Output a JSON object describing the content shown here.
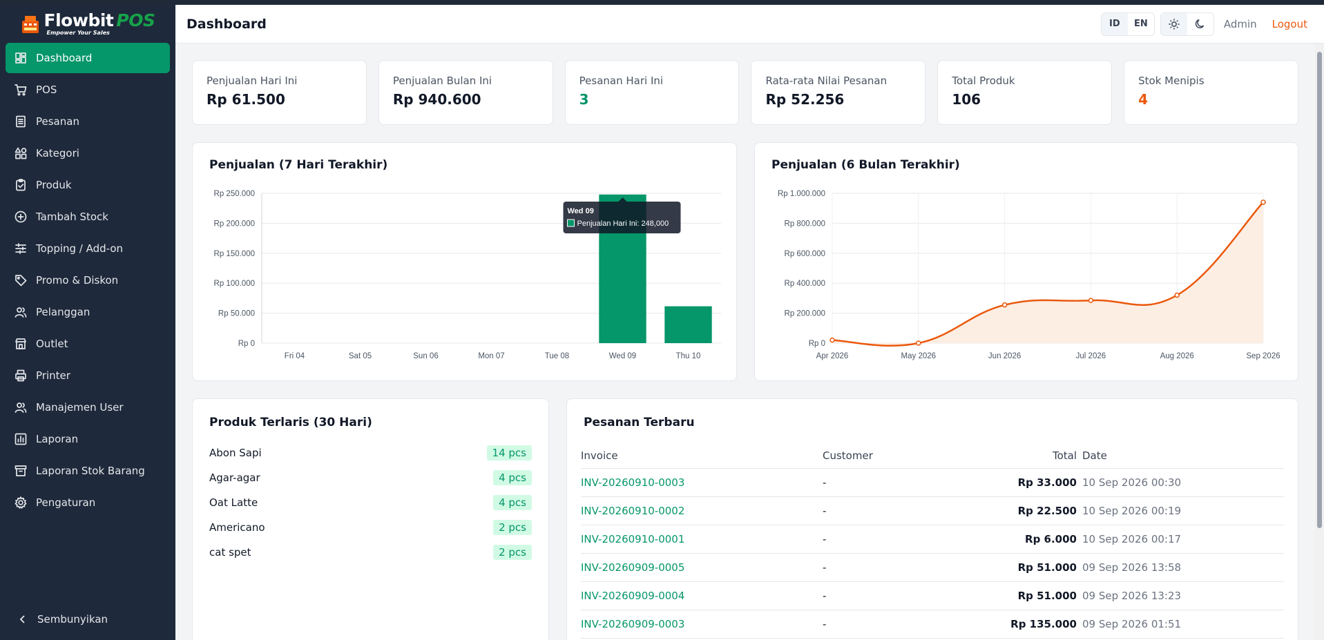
{
  "app": {
    "logo_title": "Flowbit",
    "logo_accent": "POS",
    "logo_tagline": "Empower Your Sales"
  },
  "sidebar": {
    "items": [
      {
        "label": "Dashboard",
        "icon": "dashboard-icon",
        "active": true
      },
      {
        "label": "POS",
        "icon": "cart-icon"
      },
      {
        "label": "Pesanan",
        "icon": "receipt-icon"
      },
      {
        "label": "Kategori",
        "icon": "shapes-icon"
      },
      {
        "label": "Produk",
        "icon": "clipboard-check-icon"
      },
      {
        "label": "Tambah Stock",
        "icon": "plus-circle-icon"
      },
      {
        "label": "Topping / Add-on",
        "icon": "sliders-icon"
      },
      {
        "label": "Promo & Diskon",
        "icon": "tag-icon"
      },
      {
        "label": "Pelanggan",
        "icon": "users-icon"
      },
      {
        "label": "Outlet",
        "icon": "store-icon"
      },
      {
        "label": "Printer",
        "icon": "printer-icon"
      },
      {
        "label": "Manajemen User",
        "icon": "users-icon"
      },
      {
        "label": "Laporan",
        "icon": "bar-chart-icon"
      },
      {
        "label": "Laporan Stok Barang",
        "icon": "archive-icon"
      },
      {
        "label": "Pengaturan",
        "icon": "gear-icon"
      }
    ],
    "hide_label": "Sembunyikan"
  },
  "header": {
    "title": "Dashboard",
    "lang_id": "ID",
    "lang_en": "EN",
    "user": "Admin",
    "logout": "Logout"
  },
  "stats": [
    {
      "label": "Penjualan Hari Ini",
      "value": "Rp 61.500",
      "tone": ""
    },
    {
      "label": "Penjualan Bulan Ini",
      "value": "Rp 940.600",
      "tone": ""
    },
    {
      "label": "Pesanan Hari Ini",
      "value": "3",
      "tone": "green"
    },
    {
      "label": "Rata-rata Nilai Pesanan",
      "value": "Rp 52.256",
      "tone": ""
    },
    {
      "label": "Total Produk",
      "value": "106",
      "tone": ""
    },
    {
      "label": "Stok Menipis",
      "value": "4",
      "tone": "orange"
    }
  ],
  "charts": {
    "weekly_title": "Penjualan (7 Hari Terakhir)",
    "monthly_title": "Penjualan (6 Bulan Terakhir)"
  },
  "chart_data": [
    {
      "type": "bar",
      "title": "Penjualan (7 Hari Terakhir)",
      "categories": [
        "Fri 04",
        "Sat 05",
        "Sun 06",
        "Mon 07",
        "Tue 08",
        "Wed 09",
        "Thu 10"
      ],
      "series": [
        {
          "name": "Penjualan Hari Ini",
          "values": [
            0,
            0,
            0,
            0,
            0,
            248000,
            61500
          ]
        }
      ],
      "ylim": [
        0,
        250000
      ],
      "yticks": [
        "Rp 0",
        "Rp 50.000",
        "Rp 100.000",
        "Rp 150.000",
        "Rp 200.000",
        "Rp 250.000"
      ],
      "color": "#059669",
      "grid": true,
      "tooltip": {
        "title": "Wed 09",
        "text": "Penjualan Hari Ini: 248,000"
      }
    },
    {
      "type": "area",
      "title": "Penjualan (6 Bulan Terakhir)",
      "categories": [
        "Apr 2026",
        "May 2026",
        "Jun 2026",
        "Jul 2026",
        "Aug 2026",
        "Sep 2026"
      ],
      "values": [
        20000,
        0,
        255000,
        285000,
        320000,
        940600
      ],
      "ylim": [
        0,
        1000000
      ],
      "yticks": [
        "Rp 0",
        "Rp 200.000",
        "Rp 400.000",
        "Rp 600.000",
        "Rp 800.000",
        "Rp 1.000.000"
      ],
      "color": "#ea580c",
      "fill": "#fdeee3",
      "grid": true
    }
  ],
  "top_products": {
    "title": "Produk Terlaris (30 Hari)",
    "items": [
      {
        "name": "Abon Sapi",
        "qty": "14 pcs"
      },
      {
        "name": "Agar-agar",
        "qty": "4 pcs"
      },
      {
        "name": "Oat Latte",
        "qty": "4 pcs"
      },
      {
        "name": "Americano",
        "qty": "2 pcs"
      },
      {
        "name": "cat spet",
        "qty": "2 pcs"
      }
    ]
  },
  "recent_orders": {
    "title": "Pesanan Terbaru",
    "columns": {
      "invoice": "Invoice",
      "customer": "Customer",
      "total": "Total",
      "date": "Date"
    },
    "rows": [
      {
        "invoice": "INV-20260910-0003",
        "customer": "-",
        "total": "Rp 33.000",
        "date": "10 Sep 2026 00:30"
      },
      {
        "invoice": "INV-20260910-0002",
        "customer": "-",
        "total": "Rp 22.500",
        "date": "10 Sep 2026 00:19"
      },
      {
        "invoice": "INV-20260910-0001",
        "customer": "-",
        "total": "Rp 6.000",
        "date": "10 Sep 2026 00:17"
      },
      {
        "invoice": "INV-20260909-0005",
        "customer": "-",
        "total": "Rp 51.000",
        "date": "09 Sep 2026 13:58"
      },
      {
        "invoice": "INV-20260909-0004",
        "customer": "-",
        "total": "Rp 51.000",
        "date": "09 Sep 2026 13:23"
      },
      {
        "invoice": "INV-20260909-0003",
        "customer": "-",
        "total": "Rp 135.000",
        "date": "09 Sep 2026 01:51"
      }
    ]
  }
}
